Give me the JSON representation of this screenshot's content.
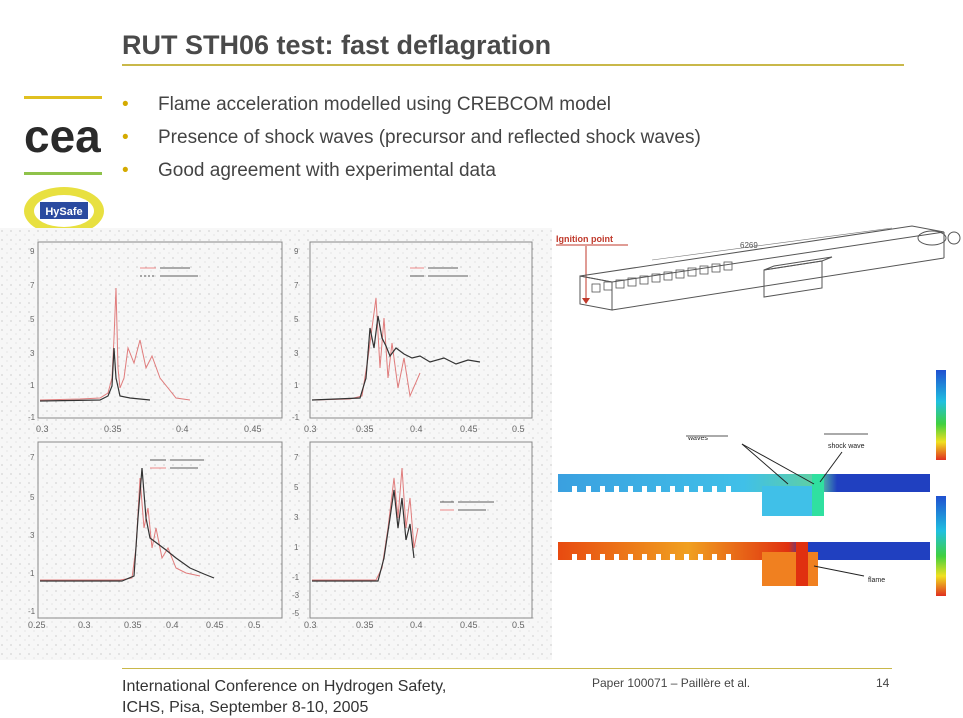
{
  "slide": {
    "title": "RUT STH06 test: fast deflagration",
    "bullets": [
      "Flame acceleration modelled using CREBCOM model",
      "Presence of shock waves (precursor and reflected shock waves)",
      "Good agreement with experimental data"
    ],
    "bullet_glyph": "•"
  },
  "logos": {
    "cea_text": "cea",
    "hysafe_text": "HySafe"
  },
  "plots": {
    "top_left_xticks": [
      "0.3",
      "0.35",
      "0.4",
      "0.45"
    ],
    "top_right_xticks": [
      "0.3",
      "0.35",
      "0.4",
      "0.45",
      "0.5"
    ],
    "bottom_left_xticks": [
      "0.25",
      "0.3",
      "0.35",
      "0.4",
      "0.45",
      "0.5"
    ],
    "bottom_right_xticks": [
      "0.3",
      "0.35",
      "0.4",
      "0.45",
      "0.5"
    ],
    "left_yticks": [
      "9",
      "7",
      "5",
      "3",
      "1",
      "-1"
    ],
    "right_yticks": [
      "9",
      "7",
      "5",
      "3",
      "1",
      "-1"
    ],
    "bottom_left_yticks": [
      "7",
      "5",
      "3",
      "1",
      "-1"
    ],
    "bottom_right_yticks": [
      "7",
      "5",
      "3",
      "1",
      "-1",
      "-3",
      "-5"
    ]
  },
  "geometry": {
    "ignition_label": "Ignition point",
    "length_label": "6269"
  },
  "fields": {
    "precursor_label": "waves",
    "reflected_label": "shock wave",
    "flame_label": "flame"
  },
  "colors": {
    "accent": "#c9b84a",
    "bullet": "#d4aa00",
    "green": "#8fc24a"
  },
  "footer": {
    "conference_line1": "International Conference on Hydrogen Safety,",
    "conference_line2": "ICHS, Pisa, September 8-10, 2005",
    "paper": "Paper 100071  – Paillère et al.",
    "page": "14"
  }
}
